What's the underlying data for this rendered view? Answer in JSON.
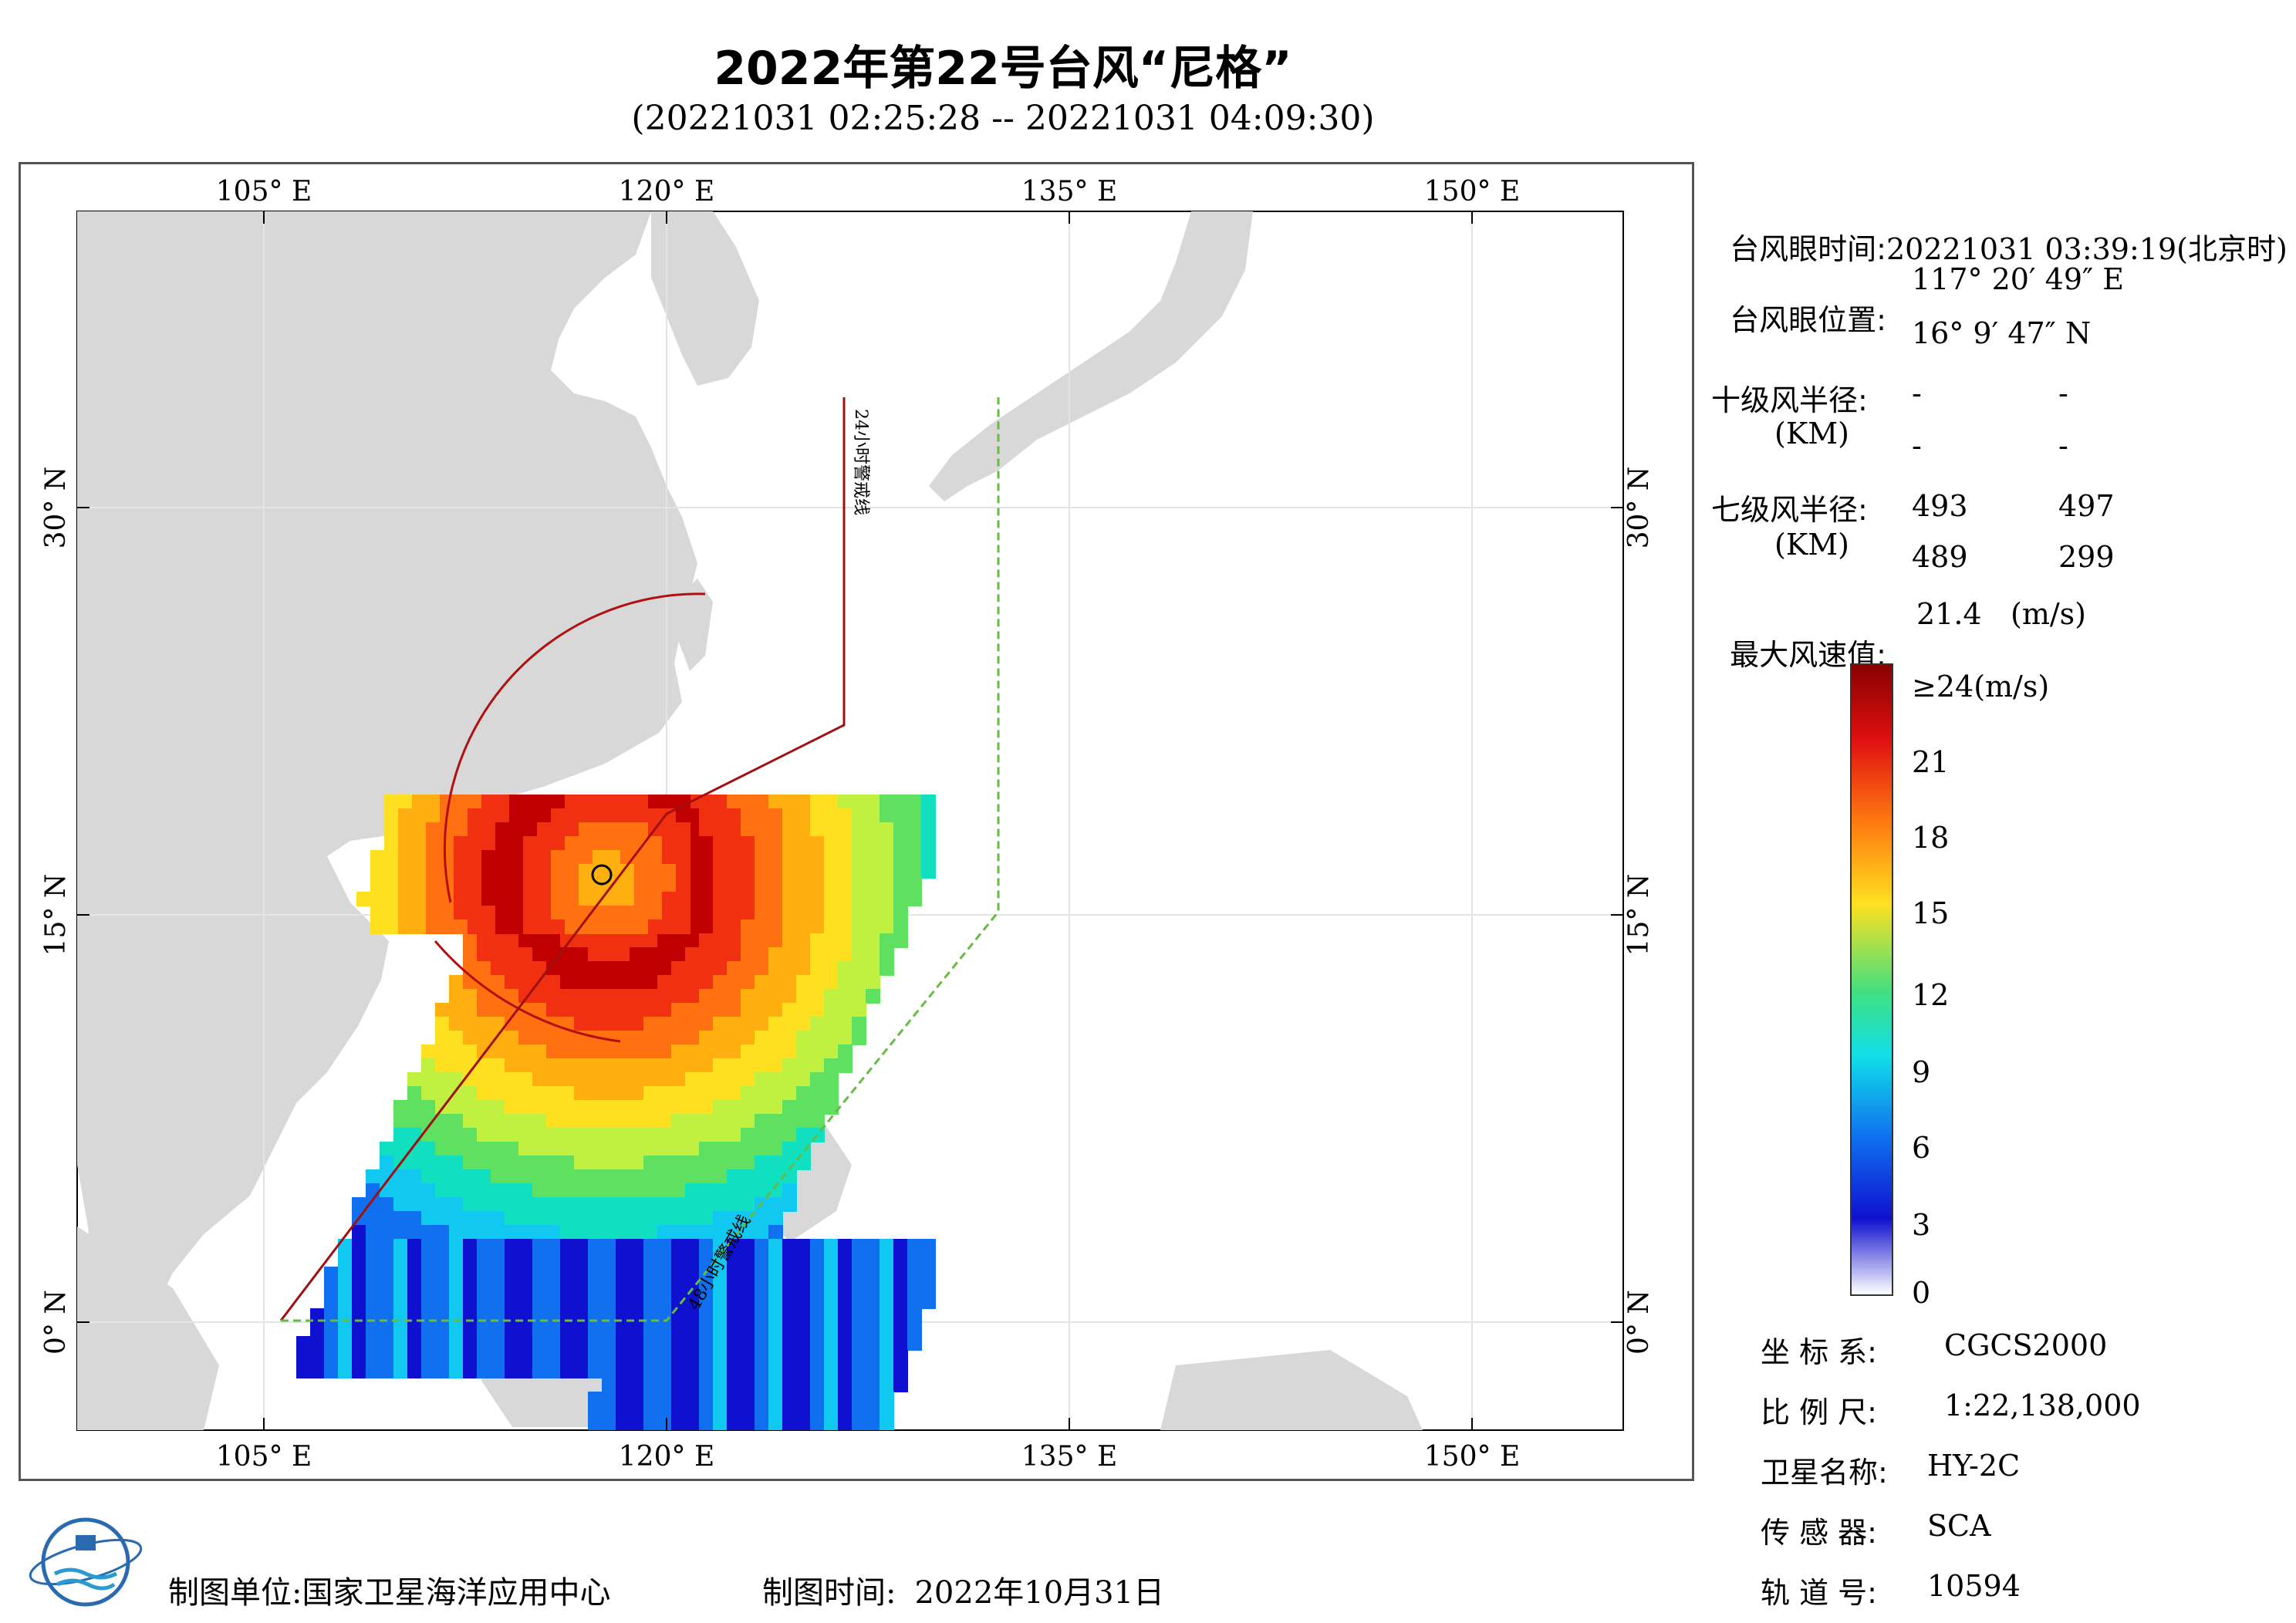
{
  "header": {
    "title": "2022年第22号台风“尼格”",
    "subtitle": "(20221031 02:25:28 -- 20221031 04:09:30)"
  },
  "map": {
    "lon_labels": [
      "105° E",
      "120° E",
      "135° E",
      "150° E"
    ],
    "lat_labels": [
      "30° N",
      "15° N",
      "0° N"
    ],
    "warning_24h_label": "24小时警戒线",
    "warning_48h_label": "48小时警戒线",
    "land_color": "#d8d8d8",
    "ocean_color": "#ffffff",
    "warning_24h_color": "#a01010",
    "warning_48h_color": "#66bb44"
  },
  "info_panel": {
    "eye_time_label": "台风眼时间:",
    "eye_time_value": "20221031 03:39:19(北京时)",
    "eye_pos_label": "台风眼位置:",
    "eye_lon": "117° 20′ 49″ E",
    "eye_lat": "16° 9′ 47″ N",
    "r10_label": "十级风半径:",
    "r10_unit": "(KM)",
    "r10_values": [
      "-",
      "-",
      "-",
      "-"
    ],
    "r7_label": "七级风半径:",
    "r7_unit": "(KM)",
    "r7_values": [
      "493",
      "497",
      "489",
      "299"
    ],
    "max_wind_label": "最大风速值:",
    "max_wind_value": "21.4",
    "max_wind_unit": "(m/s)"
  },
  "colorbar": {
    "labels": [
      "≥24(m/s)",
      "21",
      "18",
      "15",
      "12",
      "9",
      "6",
      "3",
      "0"
    ]
  },
  "meta_panel": {
    "crs_label": "坐 标 系:",
    "crs_value": "CGCS2000",
    "scale_label": "比 例 尺:",
    "scale_value": "1:22,138,000",
    "satellite_label": "卫星名称:",
    "satellite_value": "HY-2C",
    "sensor_label": "传 感 器:",
    "sensor_value": "SCA",
    "orbit_label": "轨 道 号:",
    "orbit_value": "10594"
  },
  "footer": {
    "unit_label": "制图单位:",
    "unit_value": "国家卫星海洋应用中心",
    "time_label": "制图时间:",
    "time_value": "2022年10月31日"
  }
}
